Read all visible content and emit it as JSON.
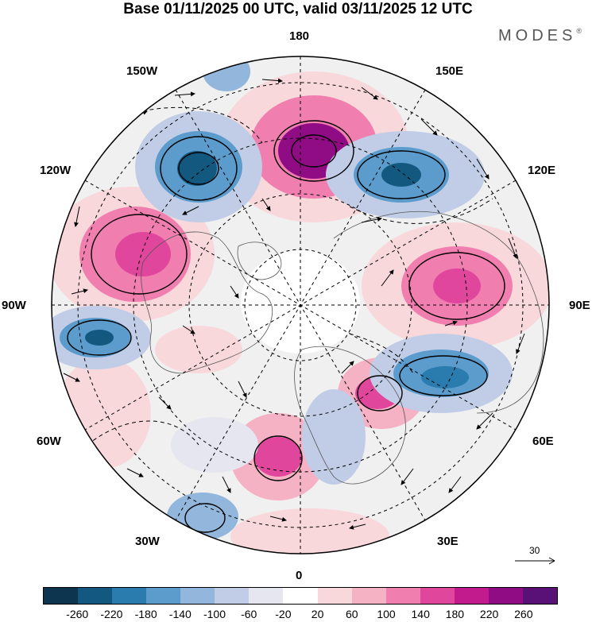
{
  "title": "Base 01/11/2025 00 UTC, valid 03/11/2025 12 UTC",
  "brand": "MODES",
  "brand_mark": "®",
  "longitude_labels": {
    "top": "180",
    "top_left": "150W",
    "top_right": "150E",
    "upper_left": "120W",
    "upper_right": "120E",
    "left": "90W",
    "right": "90E",
    "lower_left": "60W",
    "lower_right": "60E",
    "bottom_left": "30W",
    "bottom_right": "30E",
    "bottom": "0"
  },
  "reference_vector": "30",
  "colorbar": {
    "colors": [
      "#0d3550",
      "#13597f",
      "#2a7cae",
      "#5b9ccd",
      "#92b6dc",
      "#c1cde6",
      "#e6e6f1",
      "#ffffff",
      "#f9d8dc",
      "#f5b2c4",
      "#f07fb0",
      "#e0479c",
      "#c11b8e",
      "#8f0c84",
      "#591177"
    ],
    "ticks": [
      "-260",
      "-220",
      "-180",
      "-140",
      "-100",
      "-60",
      "-20",
      "20",
      "60",
      "100",
      "140",
      "180",
      "220",
      "260"
    ]
  }
}
